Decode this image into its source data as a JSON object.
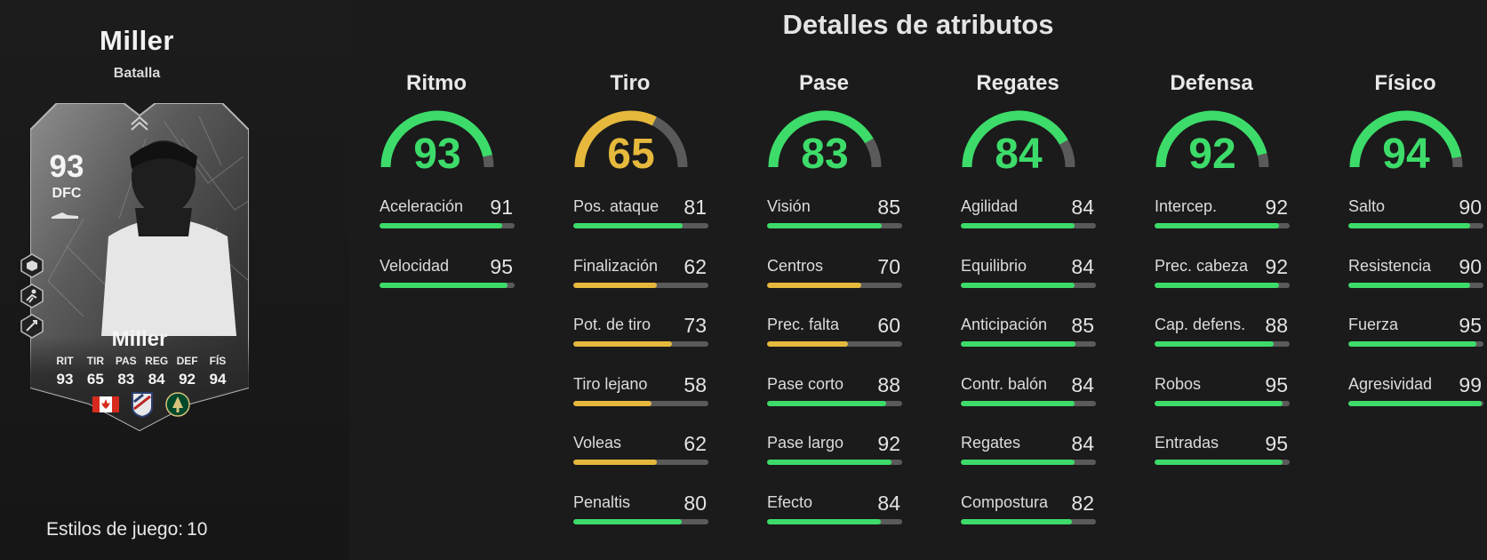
{
  "player": {
    "name": "Miller",
    "variant": "Batalla",
    "card": {
      "rating": "93",
      "position": "DFC",
      "name": "Miller",
      "stat_labels": [
        "RIT",
        "TIR",
        "PAS",
        "REG",
        "DEF",
        "FÍS"
      ],
      "stat_values": [
        "93",
        "65",
        "83",
        "84",
        "92",
        "94"
      ],
      "flags": [
        "canada-flag-icon",
        "mls-logo-icon",
        "portland-timbers-crest-icon"
      ],
      "playstyle_icons": [
        "playstyle-icon-1",
        "playstyle-icon-2",
        "playstyle-icon-3"
      ]
    },
    "playstyles": {
      "label": "Estilos de juego:",
      "value": "10"
    }
  },
  "attributes": {
    "title": "Detalles de atributos",
    "colors": {
      "high": "#3ddc6a",
      "mid": "#e6b83c",
      "track": "#5a5a5a"
    },
    "categories": [
      {
        "name": "Ritmo",
        "value": 93,
        "stats": [
          {
            "name": "Aceleración",
            "value": 91
          },
          {
            "name": "Velocidad",
            "value": 95
          }
        ]
      },
      {
        "name": "Tiro",
        "value": 65,
        "stats": [
          {
            "name": "Pos. ataque",
            "value": 81
          },
          {
            "name": "Finalización",
            "value": 62
          },
          {
            "name": "Pot. de tiro",
            "value": 73
          },
          {
            "name": "Tiro lejano",
            "value": 58
          },
          {
            "name": "Voleas",
            "value": 62
          },
          {
            "name": "Penaltis",
            "value": 80
          }
        ]
      },
      {
        "name": "Pase",
        "value": 83,
        "stats": [
          {
            "name": "Visión",
            "value": 85
          },
          {
            "name": "Centros",
            "value": 70
          },
          {
            "name": "Prec. falta",
            "value": 60
          },
          {
            "name": "Pase corto",
            "value": 88
          },
          {
            "name": "Pase largo",
            "value": 92
          },
          {
            "name": "Efecto",
            "value": 84
          }
        ]
      },
      {
        "name": "Regates",
        "value": 84,
        "stats": [
          {
            "name": "Agilidad",
            "value": 84
          },
          {
            "name": "Equilibrio",
            "value": 84
          },
          {
            "name": "Anticipación",
            "value": 85
          },
          {
            "name": "Contr. balón",
            "value": 84
          },
          {
            "name": "Regates",
            "value": 84
          },
          {
            "name": "Compostura",
            "value": 82
          }
        ]
      },
      {
        "name": "Defensa",
        "value": 92,
        "stats": [
          {
            "name": "Intercep.",
            "value": 92
          },
          {
            "name": "Prec. cabeza",
            "value": 92
          },
          {
            "name": "Cap. defens.",
            "value": 88
          },
          {
            "name": "Robos",
            "value": 95
          },
          {
            "name": "Entradas",
            "value": 95
          }
        ]
      },
      {
        "name": "Físico",
        "value": 94,
        "stats": [
          {
            "name": "Salto",
            "value": 90
          },
          {
            "name": "Resistencia",
            "value": 90
          },
          {
            "name": "Fuerza",
            "value": 95
          },
          {
            "name": "Agresividad",
            "value": 99
          }
        ]
      }
    ]
  }
}
